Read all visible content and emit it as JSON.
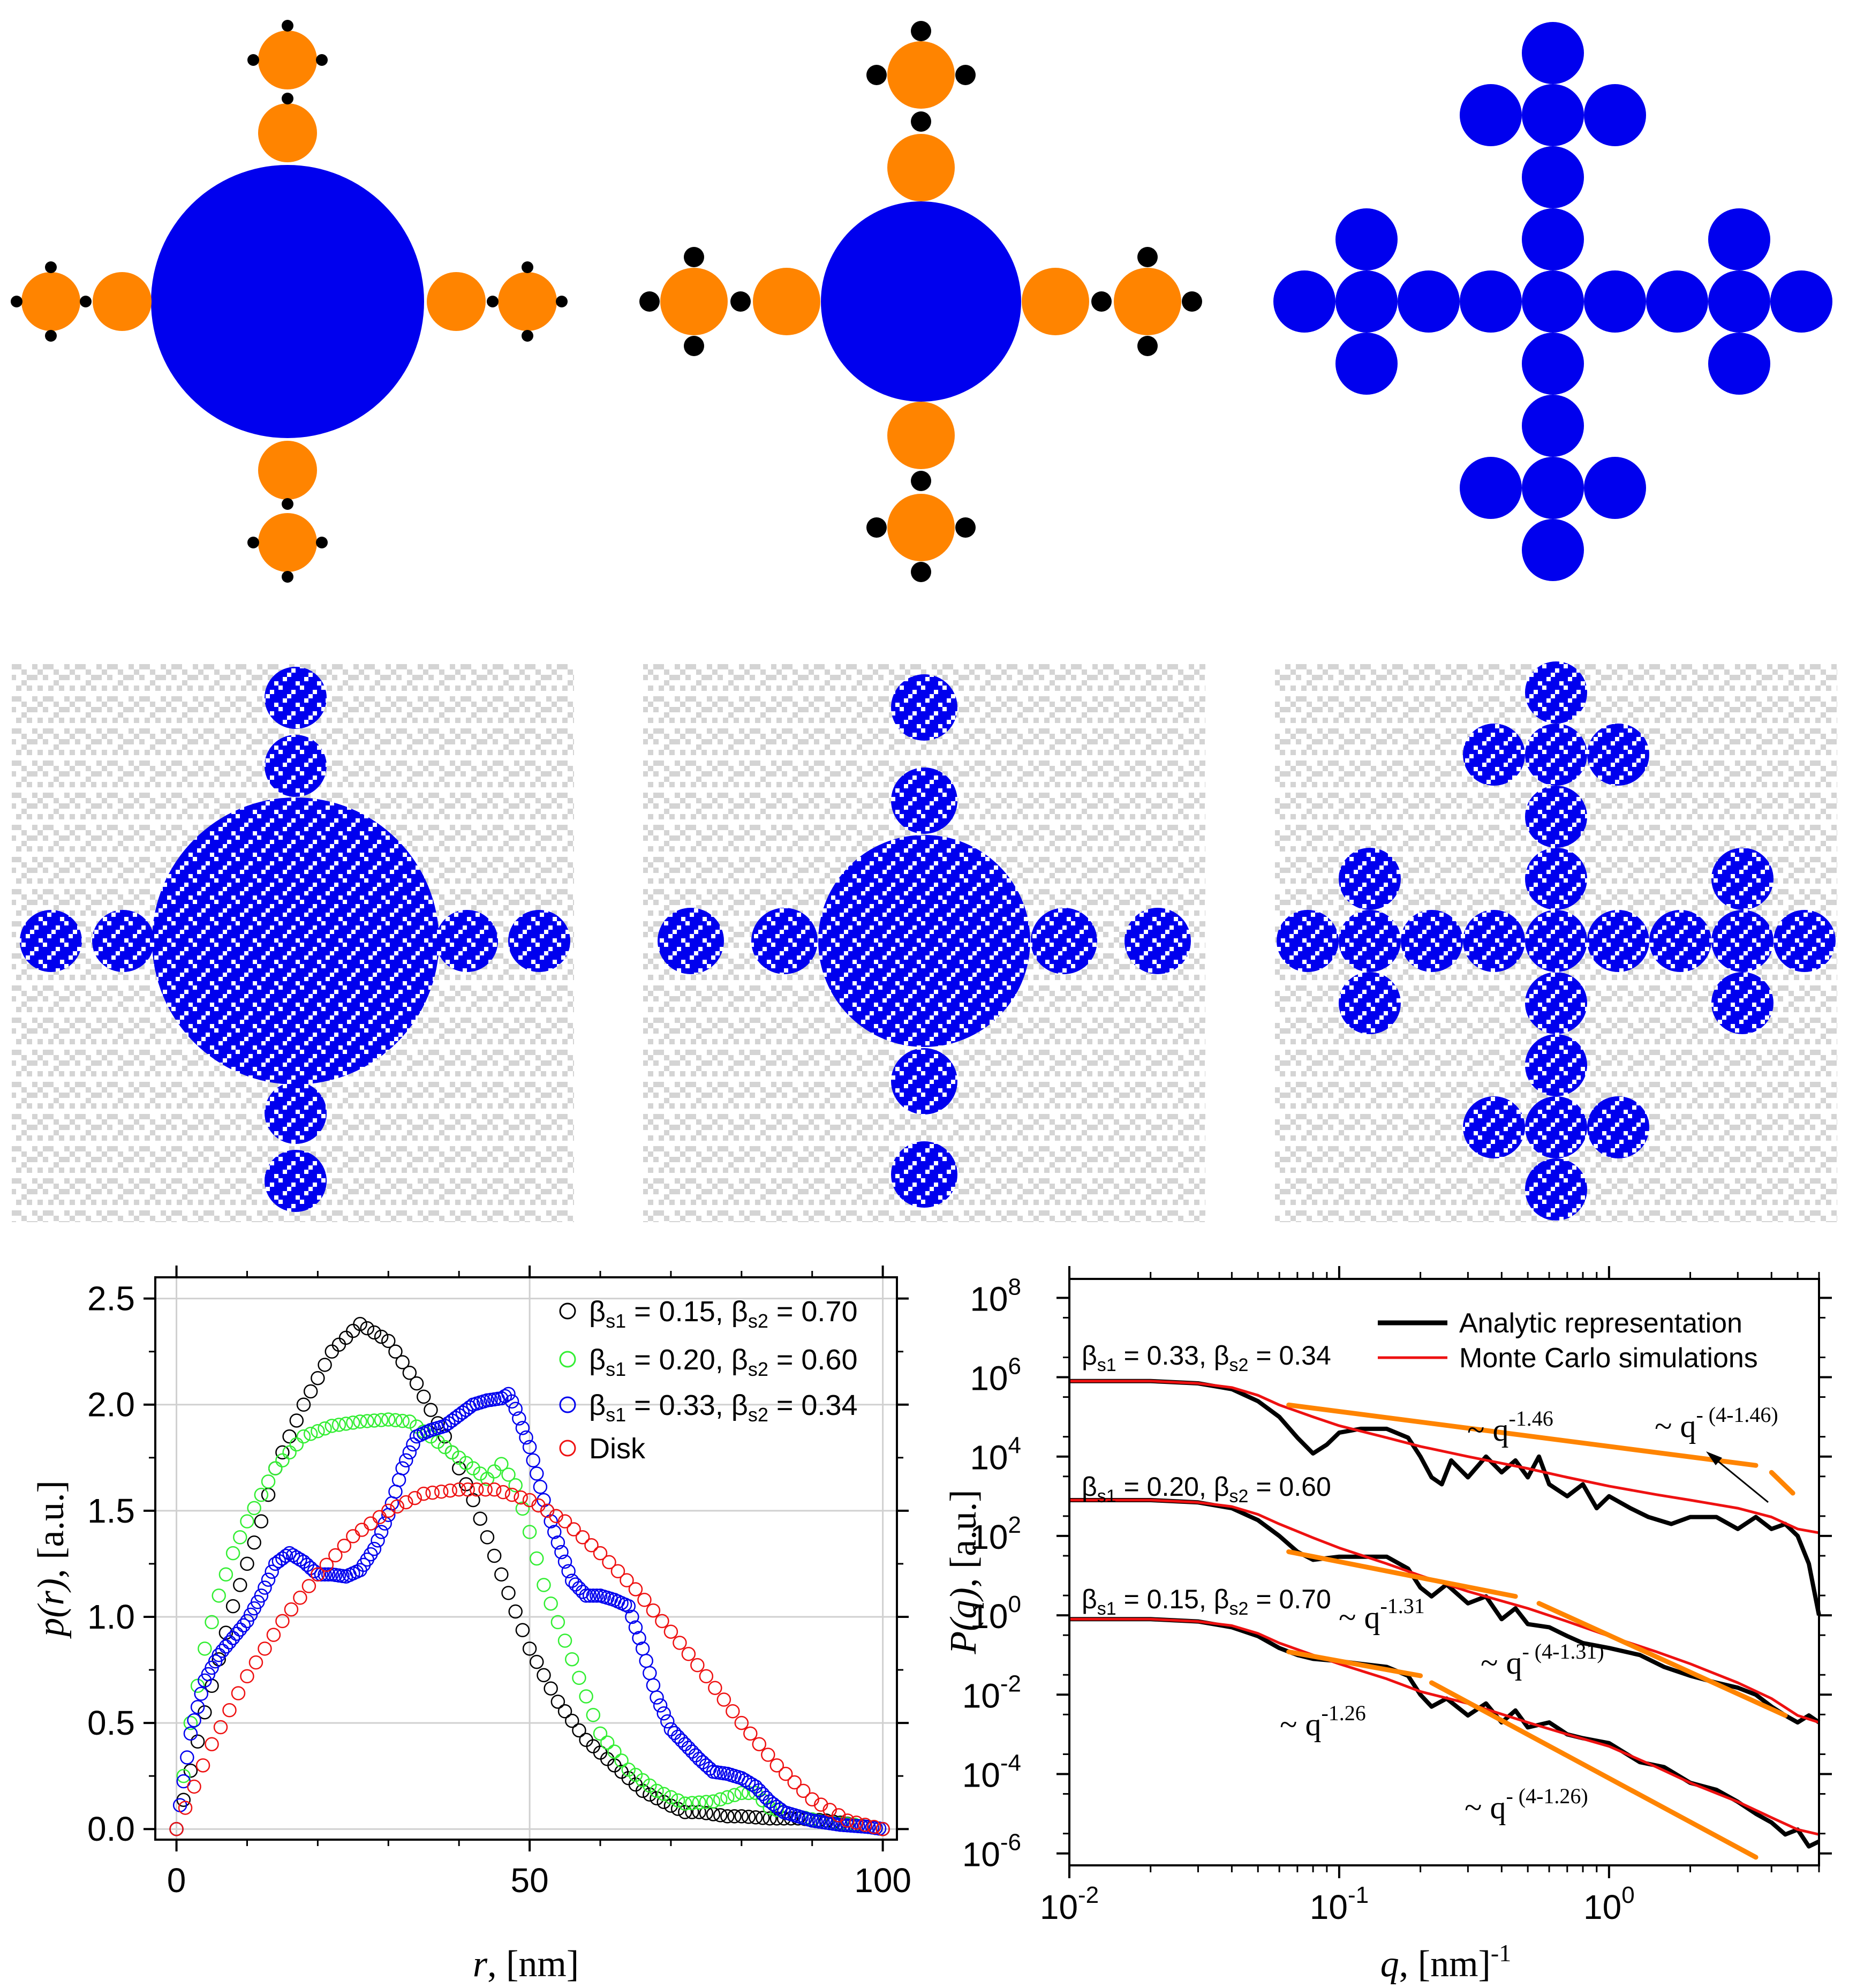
{
  "colors": {
    "blue": "#0000ee",
    "orange": "#ff8400",
    "black": "#000000",
    "grey": "#d4d4d4",
    "green": "#33ee33",
    "red": "#ee1111"
  },
  "panels": {
    "schematic": [
      "schematic-left",
      "schematic-middle",
      "schematic-right"
    ],
    "simulation": [
      "simulation-left",
      "simulation-middle",
      "simulation-right"
    ]
  },
  "chart_data": [
    {
      "id": "pr",
      "type": "scatter",
      "xlabel_var": "r",
      "xlabel_unit": ", [nm]",
      "ylabel_var": "p(r)",
      "ylabel_unit": ", [a.u.]",
      "xlim": [
        -3,
        102
      ],
      "ylim": [
        -0.05,
        2.6
      ],
      "xticks": [
        0,
        50,
        100
      ],
      "xtick_labels": [
        "0",
        "50",
        "100"
      ],
      "yticks": [
        0,
        0.5,
        1.0,
        1.5,
        2.0,
        2.5
      ],
      "ytick_labels": [
        "0.0",
        "0.5",
        "1.0",
        "1.5",
        "2.0",
        "2.5"
      ],
      "grid": true,
      "legend_position": "top-right",
      "series": [
        {
          "name": "black",
          "legend": {
            "a": "β",
            "s1": "s1",
            "v1": " = 0.15, ",
            "b": "β",
            "s2": "s2",
            "v2": " = 0.70"
          },
          "color": "#000000",
          "x": [
            0,
            4,
            8,
            10,
            12,
            14,
            18,
            22,
            26,
            30,
            34,
            38,
            42,
            46,
            50,
            54,
            58,
            62,
            66,
            70,
            72,
            74,
            76,
            78,
            80,
            84,
            88,
            92,
            96,
            100
          ],
          "y": [
            0,
            0.55,
            1.05,
            1.25,
            1.45,
            1.7,
            2.0,
            2.25,
            2.38,
            2.3,
            2.1,
            1.85,
            1.55,
            1.2,
            0.85,
            0.6,
            0.42,
            0.3,
            0.18,
            0.11,
            0.08,
            0.08,
            0.07,
            0.06,
            0.06,
            0.05,
            0.05,
            0.04,
            0.02,
            0
          ]
        },
        {
          "name": "green",
          "legend": {
            "a": "β",
            "s1": "s1",
            "v1": " = 0.20, ",
            "b": "β",
            "s2": "s2",
            "v2": " = 0.60"
          },
          "color": "#33ee33",
          "x": [
            0,
            2,
            4,
            6,
            8,
            10,
            14,
            18,
            22,
            26,
            30,
            33,
            36,
            40,
            44,
            46,
            48,
            50,
            52,
            56,
            60,
            64,
            68,
            72,
            76,
            80,
            82,
            84,
            88,
            92,
            96,
            100
          ],
          "y": [
            0,
            0.5,
            0.85,
            1.1,
            1.3,
            1.45,
            1.7,
            1.85,
            1.9,
            1.92,
            1.93,
            1.92,
            1.85,
            1.75,
            1.65,
            1.72,
            1.62,
            1.4,
            1.15,
            0.8,
            0.45,
            0.28,
            0.18,
            0.12,
            0.13,
            0.17,
            0.17,
            0.1,
            0.06,
            0.03,
            0.02,
            0
          ]
        },
        {
          "name": "blue",
          "legend": {
            "a": "β",
            "s1": "s1",
            "v1": " = 0.33, ",
            "b": "β",
            "s2": "s2",
            "v2": " = 0.34"
          },
          "color": "#0000ee",
          "x": [
            0,
            2,
            4,
            6,
            8,
            10,
            12,
            14,
            16,
            18,
            20,
            22,
            24,
            26,
            28,
            30,
            32,
            34,
            36,
            38,
            40,
            42,
            44,
            46,
            47,
            48,
            50,
            52,
            54,
            56,
            58,
            60,
            62,
            64,
            66,
            68,
            70,
            72,
            74,
            76,
            78,
            80,
            82,
            84,
            86,
            90,
            94,
            98,
            100
          ],
          "y": [
            0,
            0.45,
            0.7,
            0.82,
            0.9,
            0.98,
            1.1,
            1.25,
            1.3,
            1.26,
            1.2,
            1.2,
            1.19,
            1.22,
            1.32,
            1.48,
            1.7,
            1.85,
            1.88,
            1.9,
            1.95,
            2.0,
            2.02,
            2.03,
            2.05,
            1.98,
            1.8,
            1.55,
            1.35,
            1.17,
            1.1,
            1.1,
            1.08,
            1.05,
            0.85,
            0.62,
            0.47,
            0.4,
            0.33,
            0.27,
            0.26,
            0.24,
            0.2,
            0.13,
            0.08,
            0.04,
            0.02,
            0.01,
            0
          ]
        },
        {
          "name": "red",
          "legend_text": "Disk",
          "color": "#ee1111",
          "x": [
            0,
            5,
            10,
            15,
            20,
            25,
            30,
            35,
            40,
            45,
            50,
            55,
            60,
            65,
            70,
            75,
            80,
            85,
            90,
            95,
            100
          ],
          "y": [
            0,
            0.4,
            0.72,
            0.98,
            1.2,
            1.38,
            1.5,
            1.58,
            1.6,
            1.6,
            1.55,
            1.45,
            1.3,
            1.13,
            0.93,
            0.72,
            0.5,
            0.3,
            0.14,
            0.04,
            0
          ]
        }
      ]
    },
    {
      "id": "pq",
      "type": "line",
      "xscale": "log",
      "yscale": "log",
      "xlabel_var": "q",
      "xlabel_unit": ", [nm]",
      "xlabel_exp": "-1",
      "ylabel_var": "P(q)",
      "ylabel_unit": ", [a.u.]",
      "xlim": [
        0.01,
        6
      ],
      "ylim": [
        5e-07,
        300000000.0
      ],
      "xticks": [
        0.01,
        0.1,
        1
      ],
      "xtick_base": [
        "10",
        "10",
        "10"
      ],
      "xtick_exp": [
        "-2",
        "-1",
        "0"
      ],
      "yticks": [
        1e-06,
        0.0001,
        0.01,
        1,
        100,
        10000.0,
        1000000.0,
        100000000.0
      ],
      "ytick_base": [
        "10",
        "10",
        "10",
        "10",
        "10",
        "10",
        "10",
        "10"
      ],
      "ytick_exp": [
        "-6",
        "-4",
        "-2",
        "0",
        "2",
        "4",
        "6",
        "8"
      ],
      "legend_position": "top-right",
      "legend": [
        {
          "label": "Analytic representation",
          "color": "#000000"
        },
        {
          "label": "Monte Carlo simulations",
          "color": "#ee1111"
        }
      ],
      "curve_labels": [
        {
          "a": "β",
          "s1": "s1",
          "v1": " = 0.33, ",
          "b": "β",
          "s2": "s2",
          "v2": " = 0.34"
        },
        {
          "a": "β",
          "s1": "s1",
          "v1": " = 0.20, ",
          "b": "β",
          "s2": "s2",
          "v2": " = 0.60"
        },
        {
          "a": "β",
          "s1": "s1",
          "v1": " = 0.15, ",
          "b": "β",
          "s2": "s2",
          "v2": " = 0.70"
        }
      ],
      "series": [
        {
          "name": "Analytic 0.33/0.34",
          "color": "#000000",
          "q": [
            0.01,
            0.02,
            0.03,
            0.04,
            0.05,
            0.06,
            0.07,
            0.08,
            0.09,
            0.1,
            0.12,
            0.15,
            0.18,
            0.2,
            0.22,
            0.24,
            0.26,
            0.3,
            0.35,
            0.4,
            0.45,
            0.5,
            0.55,
            0.6,
            0.7,
            0.8,
            0.9,
            1.0,
            1.2,
            1.4,
            1.7,
            2.0,
            2.5,
            3,
            3.5,
            4,
            4.5,
            5,
            5.5,
            6
          ],
          "P": [
            800000.0,
            800000.0,
            700000.0,
            500000.0,
            250000.0,
            100000.0,
            30000.0,
            12000.0,
            20000.0,
            40000.0,
            50000.0,
            50000.0,
            30000.0,
            10000.0,
            3000.0,
            2000.0,
            8000.0,
            3000.0,
            10000.0,
            4000.0,
            8000.0,
            3000.0,
            10000.0,
            2000.0,
            1000.0,
            2000.0,
            500,
            1000.0,
            500,
            300,
            200,
            300,
            300,
            150,
            300,
            150,
            200,
            100,
            20,
            1
          ]
        },
        {
          "name": "MC 0.33/0.34",
          "color": "#ee1111",
          "q": [
            0.01,
            0.02,
            0.03,
            0.04,
            0.05,
            0.06,
            0.08,
            0.1,
            0.15,
            0.2,
            0.3,
            0.5,
            0.7,
            1,
            1.5,
            2,
            3,
            4,
            5,
            6
          ],
          "P": [
            800000.0,
            800000.0,
            700000.0,
            550000.0,
            350000.0,
            200000.0,
            100000.0,
            60000.0,
            30000.0,
            18000.0,
            10000.0,
            5000.0,
            3000.0,
            1800.0,
            1100.0,
            800,
            500,
            300,
            150,
            120
          ]
        },
        {
          "name": "Analytic 0.20/0.60",
          "color": "#000000",
          "q": [
            0.01,
            0.02,
            0.03,
            0.04,
            0.05,
            0.06,
            0.07,
            0.08,
            0.1,
            0.12,
            0.15,
            0.18,
            0.2,
            0.22,
            0.25,
            0.3,
            0.35,
            0.4,
            0.45,
            0.5,
            0.6,
            0.7,
            0.8,
            1,
            1.3,
            1.6,
            2,
            2.5,
            3,
            3.5,
            4,
            4.5,
            5,
            5.5,
            6
          ],
          "P": [
            800,
            800,
            700,
            500,
            250,
            100,
            40,
            25,
            30,
            30,
            30,
            15,
            5,
            3,
            6,
            2,
            3,
            0.8,
            1.5,
            0.6,
            0.5,
            0.3,
            0.2,
            0.15,
            0.1,
            0.05,
            0.03,
            0.02,
            0.015,
            0.01,
            0.005,
            0.003,
            0.002,
            0.003,
            0.002
          ]
        },
        {
          "name": "MC 0.20/0.60",
          "color": "#ee1111",
          "q": [
            0.01,
            0.02,
            0.03,
            0.04,
            0.05,
            0.06,
            0.08,
            0.1,
            0.15,
            0.2,
            0.3,
            0.5,
            0.7,
            1,
            1.5,
            2,
            3,
            4,
            5,
            6
          ],
          "P": [
            800,
            800,
            700,
            550,
            350,
            200,
            90,
            50,
            20,
            10,
            4,
            1.5,
            0.7,
            0.3,
            0.12,
            0.06,
            0.02,
            0.008,
            0.003,
            0.002
          ]
        },
        {
          "name": "Analytic 0.15/0.70",
          "color": "#000000",
          "q": [
            0.01,
            0.02,
            0.03,
            0.04,
            0.05,
            0.06,
            0.07,
            0.08,
            0.1,
            0.12,
            0.15,
            0.18,
            0.2,
            0.22,
            0.25,
            0.3,
            0.35,
            0.4,
            0.45,
            0.5,
            0.6,
            0.7,
            0.8,
            1,
            1.3,
            1.6,
            2,
            2.5,
            3,
            3.5,
            4,
            4.5,
            5,
            5.5,
            6
          ],
          "P": [
            0.8,
            0.8,
            0.7,
            0.5,
            0.3,
            0.15,
            0.1,
            0.08,
            0.07,
            0.06,
            0.05,
            0.03,
            0.01,
            0.005,
            0.008,
            0.003,
            0.006,
            0.002,
            0.004,
            0.0015,
            0.002,
            0.001,
            0.0008,
            0.0006,
            0.0002,
            0.00015,
            6e-05,
            4e-05,
            2e-05,
            1e-05,
            6e-06,
            3e-06,
            4e-06,
            1.5e-06,
            2e-06
          ]
        },
        {
          "name": "MC 0.15/0.70",
          "color": "#ee1111",
          "q": [
            0.01,
            0.02,
            0.03,
            0.04,
            0.05,
            0.06,
            0.08,
            0.1,
            0.15,
            0.2,
            0.3,
            0.5,
            0.7,
            1,
            1.5,
            2,
            3,
            4,
            5,
            6
          ],
          "P": [
            0.8,
            0.8,
            0.7,
            0.55,
            0.35,
            0.2,
            0.1,
            0.06,
            0.025,
            0.012,
            0.006,
            0.002,
            0.001,
            0.0005,
            0.00015,
            6e-05,
            2e-05,
            8e-06,
            4e-06,
            3e-06
          ]
        }
      ],
      "power_laws": [
        {
          "q1": 0.065,
          "q2": 3.5,
          "P1": 200000.0,
          "P2": 6000.0,
          "color": "#ff8400"
        },
        {
          "q1": 4.0,
          "q2": 4.8,
          "P1": 4000,
          "P2": 1200,
          "color": "#ff8400"
        },
        {
          "q1": 0.065,
          "q2": 0.45,
          "P1": 40,
          "P2": 3,
          "color": "#ff8400"
        },
        {
          "q1": 0.55,
          "q2": 4.5,
          "P1": 2,
          "P2": 0.003,
          "color": "#ff8400"
        },
        {
          "q1": 0.065,
          "q2": 0.2,
          "P1": 0.12,
          "P2": 0.03,
          "color": "#ff8400"
        },
        {
          "q1": 0.22,
          "q2": 3.5,
          "P1": 0.02,
          "P2": 8e-07,
          "color": "#ff8400"
        }
      ],
      "annotations": [
        {
          "text": "~ q",
          "sup": "-1.46"
        },
        {
          "text": "~ q",
          "sup": "- (4-1.46)"
        },
        {
          "text": "~ q",
          "sup": "-1.31"
        },
        {
          "text": "~ q",
          "sup": "- (4-1.31)"
        },
        {
          "text": "~ q",
          "sup": "-1.26"
        },
        {
          "text": "~ q",
          "sup": "- (4-1.26)"
        }
      ]
    }
  ]
}
